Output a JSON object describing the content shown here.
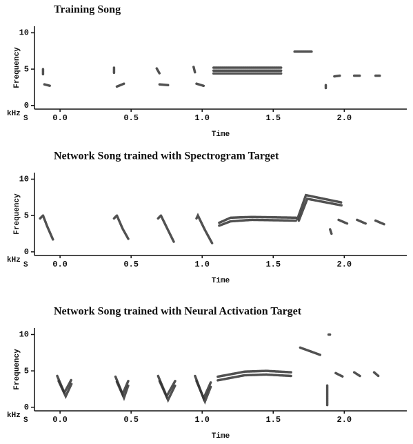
{
  "chart_data": [
    {
      "type": "spectrogram",
      "title": "Training Song",
      "xlabel": "Time",
      "ylabel": "Frequency",
      "yunit": "kHz",
      "xunit": "S",
      "color": "#333",
      "xlim": [
        -0.18,
        2.44
      ],
      "ylim": [
        -0.5,
        10.9
      ],
      "xticks": [
        {
          "value": 0,
          "label": "0.0"
        },
        {
          "value": 0.5,
          "label": "0.5"
        },
        {
          "value": 1,
          "label": "1.0"
        },
        {
          "value": 1.5,
          "label": "1.5"
        },
        {
          "value": 2,
          "label": "2.0"
        }
      ],
      "yticks": [
        0,
        5,
        10
      ],
      "series": [
        {
          "x": [
            -0.12,
            -0.12
          ],
          "values": [
            4.3,
            5.0
          ]
        },
        {
          "x": [
            -0.11,
            -0.07
          ],
          "values": [
            2.9,
            2.7
          ]
        },
        {
          "x": [
            0.38,
            0.38
          ],
          "values": [
            4.5,
            5.2
          ]
        },
        {
          "x": [
            0.4,
            0.45
          ],
          "values": [
            2.6,
            3.0
          ]
        },
        {
          "x": [
            0.68,
            0.7
          ],
          "values": [
            5.1,
            4.4
          ]
        },
        {
          "x": [
            0.7,
            0.76
          ],
          "values": [
            2.9,
            2.8
          ]
        },
        {
          "x": [
            0.94,
            0.95
          ],
          "values": [
            5.3,
            4.5
          ]
        },
        {
          "x": [
            0.96,
            1.01
          ],
          "values": [
            3.0,
            2.7
          ]
        },
        {
          "x": [
            1.08,
            1.56
          ],
          "values": [
            5.2,
            5.2
          ]
        },
        {
          "x": [
            1.08,
            1.56
          ],
          "values": [
            4.8,
            4.8
          ]
        },
        {
          "x": [
            1.08,
            1.56
          ],
          "values": [
            4.4,
            4.4
          ]
        },
        {
          "x": [
            1.65,
            1.77
          ],
          "values": [
            7.4,
            7.4
          ]
        },
        {
          "x": [
            1.87,
            1.87
          ],
          "values": [
            2.4,
            2.8
          ]
        },
        {
          "x": [
            1.93,
            1.97
          ],
          "values": [
            4.0,
            4.1
          ]
        },
        {
          "x": [
            2.07,
            2.11
          ],
          "values": [
            4.1,
            4.1
          ]
        },
        {
          "x": [
            2.22,
            2.25
          ],
          "values": [
            4.1,
            4.1
          ]
        }
      ]
    },
    {
      "type": "spectrogram",
      "title": "Network Song trained with Spectrogram Target",
      "xlabel": "Time",
      "ylabel": "Frequency",
      "yunit": "kHz",
      "xunit": "S",
      "color": "#333",
      "xlim": [
        -0.18,
        2.44
      ],
      "ylim": [
        -0.5,
        10.9
      ],
      "xticks": [
        {
          "value": 0,
          "label": "0.0"
        },
        {
          "value": 0.5,
          "label": "0.5"
        },
        {
          "value": 1,
          "label": "1.0"
        },
        {
          "value": 1.5,
          "label": "1.5"
        },
        {
          "value": 2,
          "label": "2.0"
        }
      ],
      "yticks": [
        0,
        5,
        10
      ],
      "series": [
        {
          "x": [
            -0.14,
            -0.12,
            -0.09,
            -0.05
          ],
          "values": [
            4.6,
            5.0,
            3.5,
            1.7
          ]
        },
        {
          "x": [
            0.38,
            0.4,
            0.44,
            0.48
          ],
          "values": [
            4.6,
            5.0,
            3.2,
            1.8
          ]
        },
        {
          "x": [
            0.69,
            0.71,
            0.76,
            0.8
          ],
          "values": [
            4.6,
            5.0,
            3.0,
            1.4
          ]
        },
        {
          "x": [
            0.96,
            0.97,
            1.02,
            1.07
          ],
          "values": [
            4.6,
            5.0,
            3.0,
            1.2
          ]
        },
        {
          "x": [
            1.12,
            1.2,
            1.35,
            1.66
          ],
          "values": [
            4.0,
            4.7,
            4.8,
            4.7
          ]
        },
        {
          "x": [
            1.12,
            1.2,
            1.35,
            1.66
          ],
          "values": [
            3.6,
            4.2,
            4.4,
            4.3
          ]
        },
        {
          "x": [
            1.67,
            1.73,
            1.98
          ],
          "values": [
            4.5,
            7.8,
            6.8
          ]
        },
        {
          "x": [
            1.68,
            1.74,
            1.98
          ],
          "values": [
            4.3,
            7.3,
            6.4
          ]
        },
        {
          "x": [
            1.9,
            1.91
          ],
          "values": [
            3.1,
            2.5
          ]
        },
        {
          "x": [
            1.96,
            2.02
          ],
          "values": [
            4.4,
            3.9
          ]
        },
        {
          "x": [
            2.09,
            2.15
          ],
          "values": [
            4.4,
            3.9
          ]
        },
        {
          "x": [
            2.22,
            2.28
          ],
          "values": [
            4.3,
            3.8
          ]
        }
      ]
    },
    {
      "type": "spectrogram",
      "title": "Network Song trained with Neural Activation Target",
      "xlabel": "Time",
      "ylabel": "Frequency",
      "yunit": "kHz",
      "xunit": "S",
      "color": "#333",
      "xlim": [
        -0.18,
        2.44
      ],
      "ylim": [
        -0.5,
        10.9
      ],
      "xticks": [
        {
          "value": 0,
          "label": "0.0"
        },
        {
          "value": 0.5,
          "label": "0.5"
        },
        {
          "value": 1,
          "label": "1.0"
        },
        {
          "value": 1.5,
          "label": "1.5"
        },
        {
          "value": 2,
          "label": "2.0"
        }
      ],
      "yticks": [
        0,
        5,
        10
      ],
      "series": [
        {
          "x": [
            -0.02,
            0.03,
            0.08
          ],
          "values": [
            4.3,
            2.0,
            3.8
          ]
        },
        {
          "x": [
            -0.01,
            0.04,
            0.08
          ],
          "values": [
            3.6,
            1.5,
            3.2
          ]
        },
        {
          "x": [
            0.39,
            0.44,
            0.48
          ],
          "values": [
            4.2,
            1.8,
            3.6
          ]
        },
        {
          "x": [
            0.4,
            0.45,
            0.48
          ],
          "values": [
            3.5,
            1.3,
            3.0
          ]
        },
        {
          "x": [
            0.69,
            0.75,
            0.81
          ],
          "values": [
            4.3,
            1.5,
            3.6
          ]
        },
        {
          "x": [
            0.7,
            0.76,
            0.81
          ],
          "values": [
            3.6,
            1.0,
            3.0
          ]
        },
        {
          "x": [
            0.95,
            1.01,
            1.06
          ],
          "values": [
            4.3,
            1.2,
            3.4
          ]
        },
        {
          "x": [
            0.96,
            1.02,
            1.06
          ],
          "values": [
            3.6,
            0.8,
            2.8
          ]
        },
        {
          "x": [
            1.11,
            1.3,
            1.45,
            1.63
          ],
          "values": [
            4.2,
            4.9,
            5.0,
            4.8
          ]
        },
        {
          "x": [
            1.11,
            1.3,
            1.45,
            1.63
          ],
          "values": [
            3.7,
            4.4,
            4.5,
            4.3
          ]
        },
        {
          "x": [
            1.69,
            1.83
          ],
          "values": [
            8.2,
            7.2
          ]
        },
        {
          "x": [
            1.88,
            1.88
          ],
          "values": [
            0.3,
            3.0
          ]
        },
        {
          "x": [
            1.89,
            1.9
          ],
          "values": [
            10.0,
            10.0
          ]
        },
        {
          "x": [
            1.94,
            1.99
          ],
          "values": [
            4.7,
            4.2
          ]
        },
        {
          "x": [
            2.07,
            2.11
          ],
          "values": [
            4.8,
            4.3
          ]
        },
        {
          "x": [
            2.21,
            2.24
          ],
          "values": [
            4.8,
            4.3
          ]
        }
      ]
    }
  ]
}
